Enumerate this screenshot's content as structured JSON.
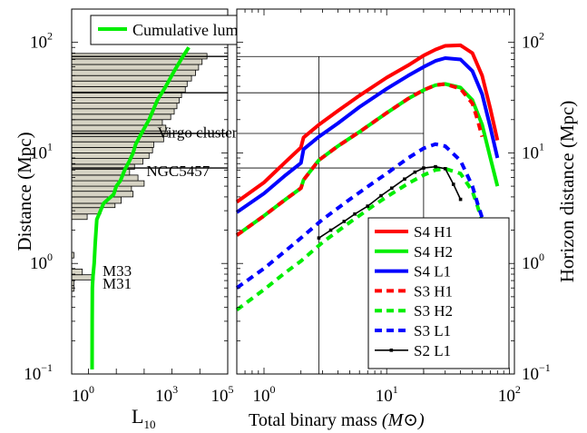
{
  "chart_data": [
    {
      "type": "bar",
      "orientation": "horizontal",
      "xscale": "log",
      "yscale": "log",
      "xlabel": "L",
      "xlabel_sub": "10",
      "ylabel": "Distance (Mpc)",
      "xlim": [
        0.25,
        100000
      ],
      "ylim": [
        0.1,
        200
      ],
      "x_ticks": [
        {
          "base": "10",
          "exp": "0"
        },
        {
          "base": "10",
          "exp": "3"
        },
        {
          "base": "10",
          "exp": "5"
        }
      ],
      "y_ticks": [
        {
          "value": 0.1,
          "base": "10",
          "exp": "−1"
        },
        {
          "value": 1,
          "base": "10",
          "exp": "0"
        },
        {
          "value": 10,
          "base": "10",
          "exp": "1"
        },
        {
          "value": 100,
          "base": "10",
          "exp": "2"
        }
      ],
      "histogram_bins": [
        {
          "d_low": 0.56,
          "d_high": 0.63,
          "value": 0.3
        },
        {
          "d_low": 0.63,
          "d_high": 0.71,
          "value": 0.3
        },
        {
          "d_low": 0.71,
          "d_high": 0.79,
          "value": 1.6
        },
        {
          "d_low": 0.79,
          "d_high": 0.89,
          "value": 0.6
        },
        {
          "d_low": 1.12,
          "d_high": 1.26,
          "value": 0.3
        },
        {
          "d_low": 2.5,
          "d_high": 2.8,
          "value": 0.9
        },
        {
          "d_low": 2.8,
          "d_high": 3.2,
          "value": 2.8
        },
        {
          "d_low": 3.2,
          "d_high": 3.5,
          "value": 9
        },
        {
          "d_low": 3.5,
          "d_high": 4.0,
          "value": 15
        },
        {
          "d_low": 4.0,
          "d_high": 4.5,
          "value": 40
        },
        {
          "d_low": 4.5,
          "d_high": 5.0,
          "value": 35
        },
        {
          "d_low": 5.0,
          "d_high": 5.6,
          "value": 100
        },
        {
          "d_low": 5.6,
          "d_high": 6.3,
          "value": 60
        },
        {
          "d_low": 6.3,
          "d_high": 7.1,
          "value": 30
        },
        {
          "d_low": 7.1,
          "d_high": 7.9,
          "value": 45
        },
        {
          "d_low": 7.9,
          "d_high": 8.9,
          "value": 90
        },
        {
          "d_low": 8.9,
          "d_high": 10,
          "value": 150
        },
        {
          "d_low": 10,
          "d_high": 11.2,
          "value": 200
        },
        {
          "d_low": 11.2,
          "d_high": 12.6,
          "value": 220
        },
        {
          "d_low": 12.6,
          "d_high": 14.1,
          "value": 500
        },
        {
          "d_low": 14.1,
          "d_high": 15.8,
          "value": 700
        },
        {
          "d_low": 15.8,
          "d_high": 17.8,
          "value": 600
        },
        {
          "d_low": 17.8,
          "d_high": 20,
          "value": 450
        },
        {
          "d_low": 20,
          "d_high": 22.4,
          "value": 900
        },
        {
          "d_low": 22.4,
          "d_high": 25.1,
          "value": 1200
        },
        {
          "d_low": 25.1,
          "d_high": 28.2,
          "value": 1500
        },
        {
          "d_low": 28.2,
          "d_high": 31.6,
          "value": 1800
        },
        {
          "d_low": 31.6,
          "d_high": 35.5,
          "value": 2200
        },
        {
          "d_low": 35.5,
          "d_high": 39.8,
          "value": 3000
        },
        {
          "d_low": 39.8,
          "d_high": 44.7,
          "value": 3500
        },
        {
          "d_low": 44.7,
          "d_high": 50.1,
          "value": 5000
        },
        {
          "d_low": 50.1,
          "d_high": 56.2,
          "value": 7000
        },
        {
          "d_low": 56.2,
          "d_high": 63.1,
          "value": 9000
        },
        {
          "d_low": 63.1,
          "d_high": 70.8,
          "value": 12000
        },
        {
          "d_low": 70.8,
          "d_high": 79.4,
          "value": 18000
        }
      ],
      "cumulative_luminosity": {
        "name": "Cumulative luminosity",
        "color": "#00ee00",
        "points": [
          [
            1.35,
            0.11
          ],
          [
            1.36,
            0.3
          ],
          [
            1.38,
            0.6
          ],
          [
            1.45,
            0.75
          ],
          [
            1.6,
            1.0
          ],
          [
            1.75,
            1.5
          ],
          [
            2.0,
            2.5
          ],
          [
            3.5,
            3.5
          ],
          [
            8,
            4.2
          ],
          [
            10,
            5.0
          ],
          [
            14,
            5.6
          ],
          [
            20,
            7.0
          ],
          [
            30,
            8.5
          ],
          [
            40,
            10
          ],
          [
            50,
            12
          ],
          [
            80,
            15
          ],
          [
            150,
            20
          ],
          [
            300,
            30
          ],
          [
            600,
            40
          ],
          [
            1200,
            55
          ],
          [
            2500,
            75
          ],
          [
            4000,
            90
          ]
        ]
      },
      "horizontal_lines_at_distance": [
        74.5,
        35,
        15,
        7.3
      ],
      "annotations": [
        {
          "text": "Virgo cluster",
          "x": 300,
          "y": 15.5
        },
        {
          "text": "NGC5457",
          "x": 120,
          "y": 6.9
        },
        {
          "text": "M33",
          "x": 3.2,
          "y": 0.86
        },
        {
          "text": "M31",
          "x": 3.2,
          "y": 0.66
        }
      ],
      "legend": {
        "placement": "top",
        "entries": [
          "Cumulative luminosity"
        ]
      }
    },
    {
      "type": "line",
      "xscale": "log",
      "yscale": "log",
      "xlabel": "Total binary mass",
      "xlabel_unit_math": "(M⊙)",
      "ylabel": "Horizon distance (Mpc)",
      "xlim": [
        0.6,
        110
      ],
      "ylim": [
        0.1,
        200
      ],
      "x_ticks": [
        {
          "value": 1,
          "base": "10",
          "exp": "0"
        },
        {
          "value": 10,
          "base": "10",
          "exp": "1"
        },
        {
          "value": 100,
          "base": "10",
          "exp": "2"
        }
      ],
      "y_ticks": [
        {
          "value": 0.1,
          "base": "10",
          "exp": "−1"
        },
        {
          "value": 1,
          "base": "10",
          "exp": "0"
        },
        {
          "value": 10,
          "base": "10",
          "exp": "1"
        },
        {
          "value": 100,
          "base": "10",
          "exp": "2"
        }
      ],
      "vertical_lines_at_mass": [
        2.8,
        20
      ],
      "horizontal_lines_at_distance": [
        74.5,
        35,
        15,
        7.3
      ],
      "series": [
        {
          "name": "S4 H1",
          "color": "#ff0000",
          "dash": "solid",
          "x": [
            0.6,
            1,
            1.5,
            2,
            2.1,
            2.8,
            4,
            6,
            10,
            15,
            20,
            25,
            30,
            40,
            50,
            60,
            70,
            80
          ],
          "y": [
            3.6,
            5.4,
            8.3,
            11.2,
            13.8,
            18,
            24,
            33,
            48,
            62,
            76,
            86,
            93,
            94,
            80,
            50,
            25,
            13
          ]
        },
        {
          "name": "S4 H2",
          "color": "#00ee00",
          "dash": "solid",
          "x": [
            0.6,
            1,
            1.5,
            2,
            2.1,
            2.8,
            4,
            6,
            10,
            15,
            20,
            25,
            30,
            40,
            50,
            60,
            70,
            80
          ],
          "y": [
            1.8,
            2.7,
            3.8,
            4.8,
            5.7,
            8.6,
            11.5,
            15.5,
            23,
            31,
            37,
            41,
            42,
            39,
            30,
            18,
            9,
            5
          ]
        },
        {
          "name": "S4 L1",
          "color": "#0000ff",
          "dash": "solid",
          "x": [
            0.6,
            1,
            1.5,
            2,
            2.1,
            2.8,
            4,
            6,
            10,
            15,
            20,
            25,
            30,
            40,
            50,
            60,
            70,
            80
          ],
          "y": [
            2.9,
            4.3,
            6.3,
            8.1,
            10.8,
            14,
            18.5,
            26,
            38,
            50,
            60,
            68,
            72,
            70,
            55,
            34,
            17,
            9
          ]
        },
        {
          "name": "S3 H1",
          "color": "#ff0000",
          "dash": "dashed",
          "x": [
            0.6,
            1,
            1.5,
            2,
            2.1,
            2.8,
            4,
            6,
            10,
            15,
            20,
            25,
            30,
            40,
            50,
            55,
            60
          ],
          "y": [
            1.8,
            2.7,
            3.8,
            4.8,
            5.7,
            8.6,
            11.5,
            15.5,
            23,
            31,
            37,
            41,
            42,
            38,
            28,
            20,
            14
          ]
        },
        {
          "name": "S3 H2",
          "color": "#00ee00",
          "dash": "dashed",
          "x": [
            0.6,
            1,
            1.5,
            2,
            3,
            5,
            8,
            10,
            15,
            20,
            25,
            30,
            40,
            50,
            55,
            60
          ],
          "y": [
            0.38,
            0.58,
            0.83,
            1.05,
            1.55,
            2.35,
            3.4,
            4.0,
            5.3,
            6.3,
            7.0,
            7.2,
            6.5,
            4.5,
            3.3,
            2.4
          ]
        },
        {
          "name": "S3 L1",
          "color": "#0000ff",
          "dash": "dashed",
          "x": [
            0.6,
            1,
            1.5,
            2,
            3,
            5,
            8,
            10,
            15,
            20,
            25,
            30,
            40,
            50,
            55,
            60
          ],
          "y": [
            0.6,
            0.9,
            1.3,
            1.7,
            2.5,
            3.8,
            5.5,
            6.5,
            9,
            11,
            12,
            11.5,
            8.5,
            5,
            3.5,
            2.6
          ]
        },
        {
          "name": "S2 L1",
          "color": "#000000",
          "dash": "solid",
          "markers": true,
          "x": [
            2.8,
            3.5,
            4.5,
            5.5,
            7,
            9,
            11,
            14,
            17,
            20,
            25,
            30,
            35,
            40
          ],
          "y": [
            1.7,
            2.0,
            2.4,
            2.8,
            3.3,
            4.1,
            4.8,
            5.8,
            6.7,
            7.3,
            7.5,
            7.2,
            5.2,
            3.8
          ]
        }
      ],
      "legend": {
        "placement": "bottom-right"
      }
    }
  ]
}
